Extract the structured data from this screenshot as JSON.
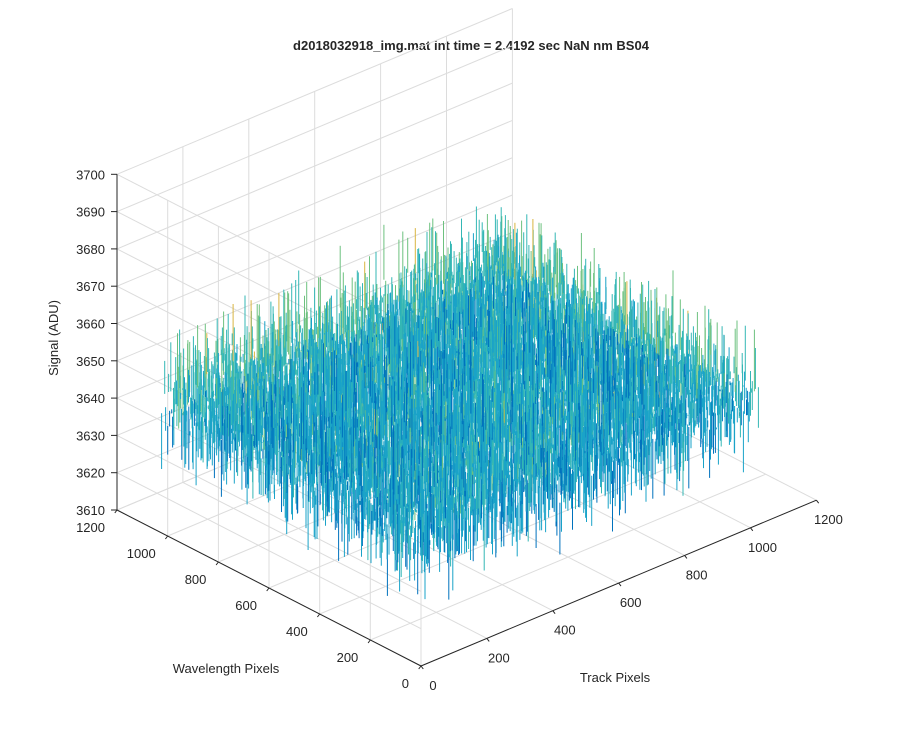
{
  "chart_data": {
    "type": "surface",
    "title": "d2018032918_img.mat int time = 2.4192 sec  NaN nm BS04",
    "xlabel": "Track Pixels",
    "ylabel": "Wavelength Pixels",
    "zlabel": "Signal (ADU)",
    "xlim": [
      0,
      1200
    ],
    "ylim": [
      0,
      1200
    ],
    "zlim": [
      3610,
      3700
    ],
    "xticks": [
      "0",
      "200",
      "400",
      "600",
      "800",
      "1000",
      "1200"
    ],
    "yticks": [
      "0",
      "200",
      "400",
      "600",
      "800",
      "1000",
      "1200"
    ],
    "zticks": [
      "3610",
      "3620",
      "3630",
      "3640",
      "3650",
      "3660",
      "3670",
      "3680",
      "3690",
      "3700"
    ],
    "data_extent": {
      "x": [
        0,
        1024
      ],
      "y": [
        0,
        1024
      ]
    },
    "signal_center": 3645,
    "signal_range": [
      3615,
      3693
    ],
    "grid": true,
    "colormap": "parula",
    "colors": [
      "#0072BD",
      "#1AA3C8",
      "#34B7B5",
      "#6DC17F",
      "#D9B541"
    ]
  }
}
